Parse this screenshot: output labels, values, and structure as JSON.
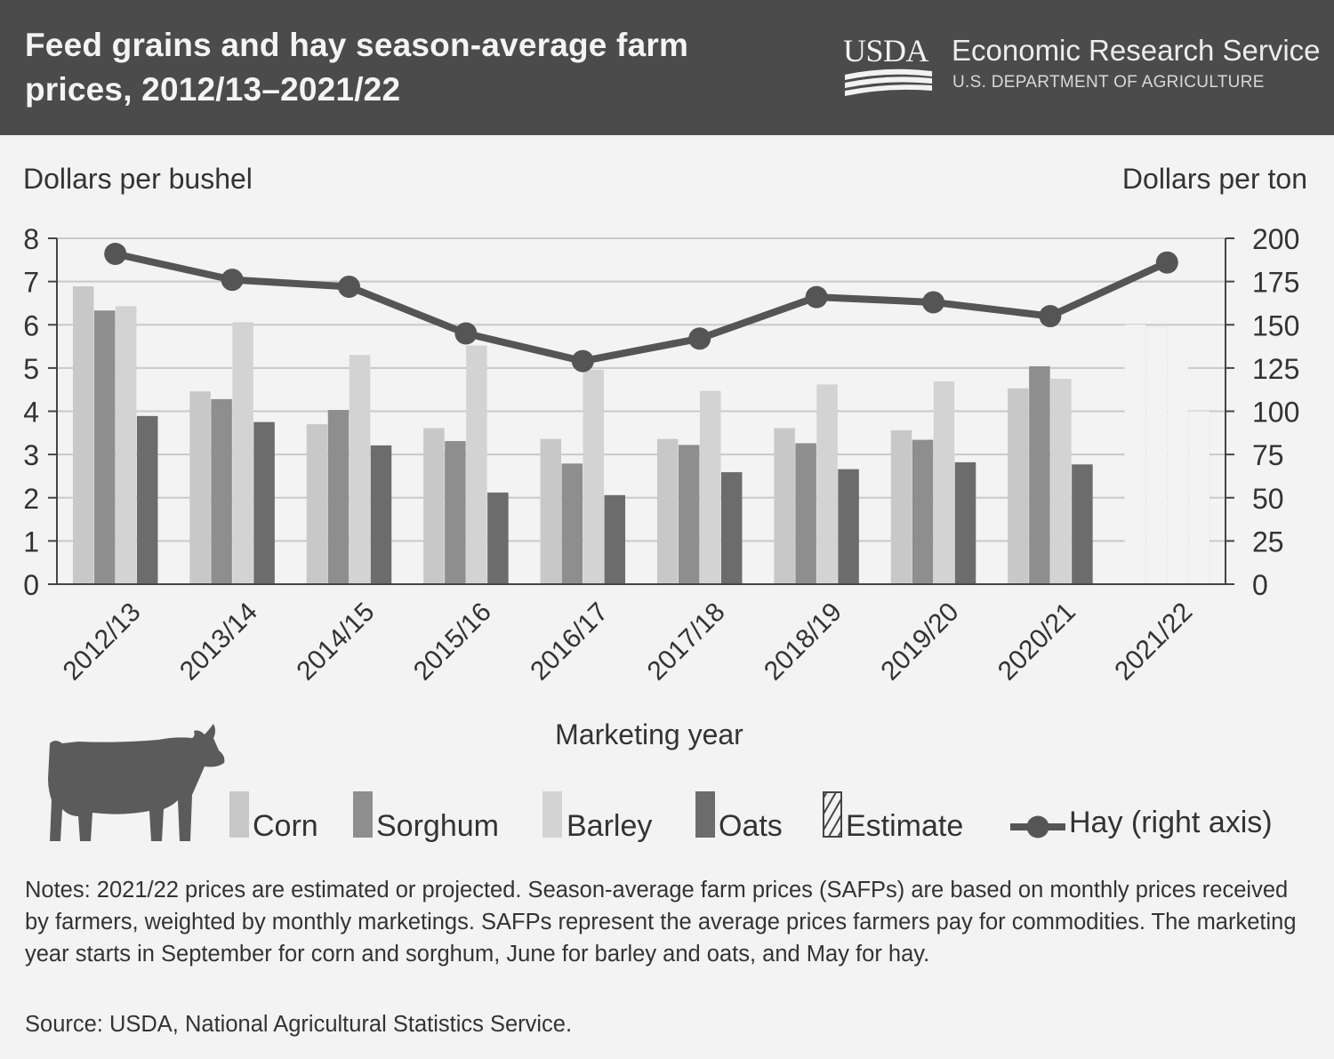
{
  "header": {
    "title_line1": "Feed grains and hay season-average farm",
    "title_line2": "prices, 2012/13–2021/22",
    "logo_text": "USDA",
    "agency": "Economic Research Service",
    "department": "U.S. DEPARTMENT OF AGRICULTURE"
  },
  "chart_data": {
    "type": "bar",
    "title": "Feed grains and hay season-average farm prices, 2012/13–2021/22",
    "xlabel": "Marketing year",
    "ylabel": "Dollars per bushel",
    "ylabel_right": "Dollars per ton",
    "ylim": [
      0,
      8
    ],
    "ylim_right": [
      0,
      200
    ],
    "yticks": [
      0,
      1,
      2,
      3,
      4,
      5,
      6,
      7,
      8
    ],
    "yticks_right": [
      0,
      25,
      50,
      75,
      100,
      125,
      150,
      175,
      200
    ],
    "grid": true,
    "categories": [
      "2012/13",
      "2013/14",
      "2014/15",
      "2015/16",
      "2016/17",
      "2017/18",
      "2018/19",
      "2019/20",
      "2020/21",
      "2021/22"
    ],
    "estimated_categories": [
      "2021/22"
    ],
    "series": [
      {
        "name": "Corn",
        "type": "bar",
        "axis": "left",
        "color": "#c8c8c8",
        "values": [
          6.89,
          4.46,
          3.7,
          3.61,
          3.36,
          3.36,
          3.61,
          3.56,
          4.53,
          6.0
        ]
      },
      {
        "name": "Sorghum",
        "type": "bar",
        "axis": "left",
        "color": "#8e8e8e",
        "values": [
          6.33,
          4.28,
          4.03,
          3.31,
          2.79,
          3.22,
          3.26,
          3.34,
          5.04,
          5.95
        ]
      },
      {
        "name": "Barley",
        "type": "bar",
        "axis": "left",
        "color": "#d3d3d3",
        "values": [
          6.43,
          6.06,
          5.3,
          5.52,
          4.96,
          4.47,
          4.62,
          4.69,
          4.75,
          5.15
        ]
      },
      {
        "name": "Oats",
        "type": "bar",
        "axis": "left",
        "color": "#6c6c6c",
        "values": [
          3.89,
          3.75,
          3.21,
          2.12,
          2.06,
          2.59,
          2.66,
          2.82,
          2.77,
          4.0
        ]
      },
      {
        "name": "Hay (right axis)",
        "type": "line",
        "axis": "right",
        "color": "#555555",
        "values": [
          191,
          176,
          172,
          145,
          129,
          142,
          166,
          163,
          155,
          186
        ]
      }
    ],
    "legend": [
      {
        "label": "Corn",
        "kind": "Corn"
      },
      {
        "label": "Sorghum",
        "kind": "Sorghum"
      },
      {
        "label": "Barley",
        "kind": "Barley"
      },
      {
        "label": "Oats",
        "kind": "Oats"
      },
      {
        "label": "Estimate",
        "kind": "estimate"
      },
      {
        "label": "Hay (right axis)",
        "kind": "line"
      }
    ]
  },
  "notes": "Notes: 2021/22 prices are estimated or projected. Season-average farm prices (SAFPs) are based on monthly prices received by farmers, weighted by monthly marketings. SAFPs represent the average prices farmers pay for commodities. The marketing year starts in September for corn and sorghum, June for barley and oats, and May for hay.",
  "source": "Source: USDA, National Agricultural Statistics Service.",
  "icons": {
    "cow": "cow-icon",
    "logo": "usda-logo"
  }
}
